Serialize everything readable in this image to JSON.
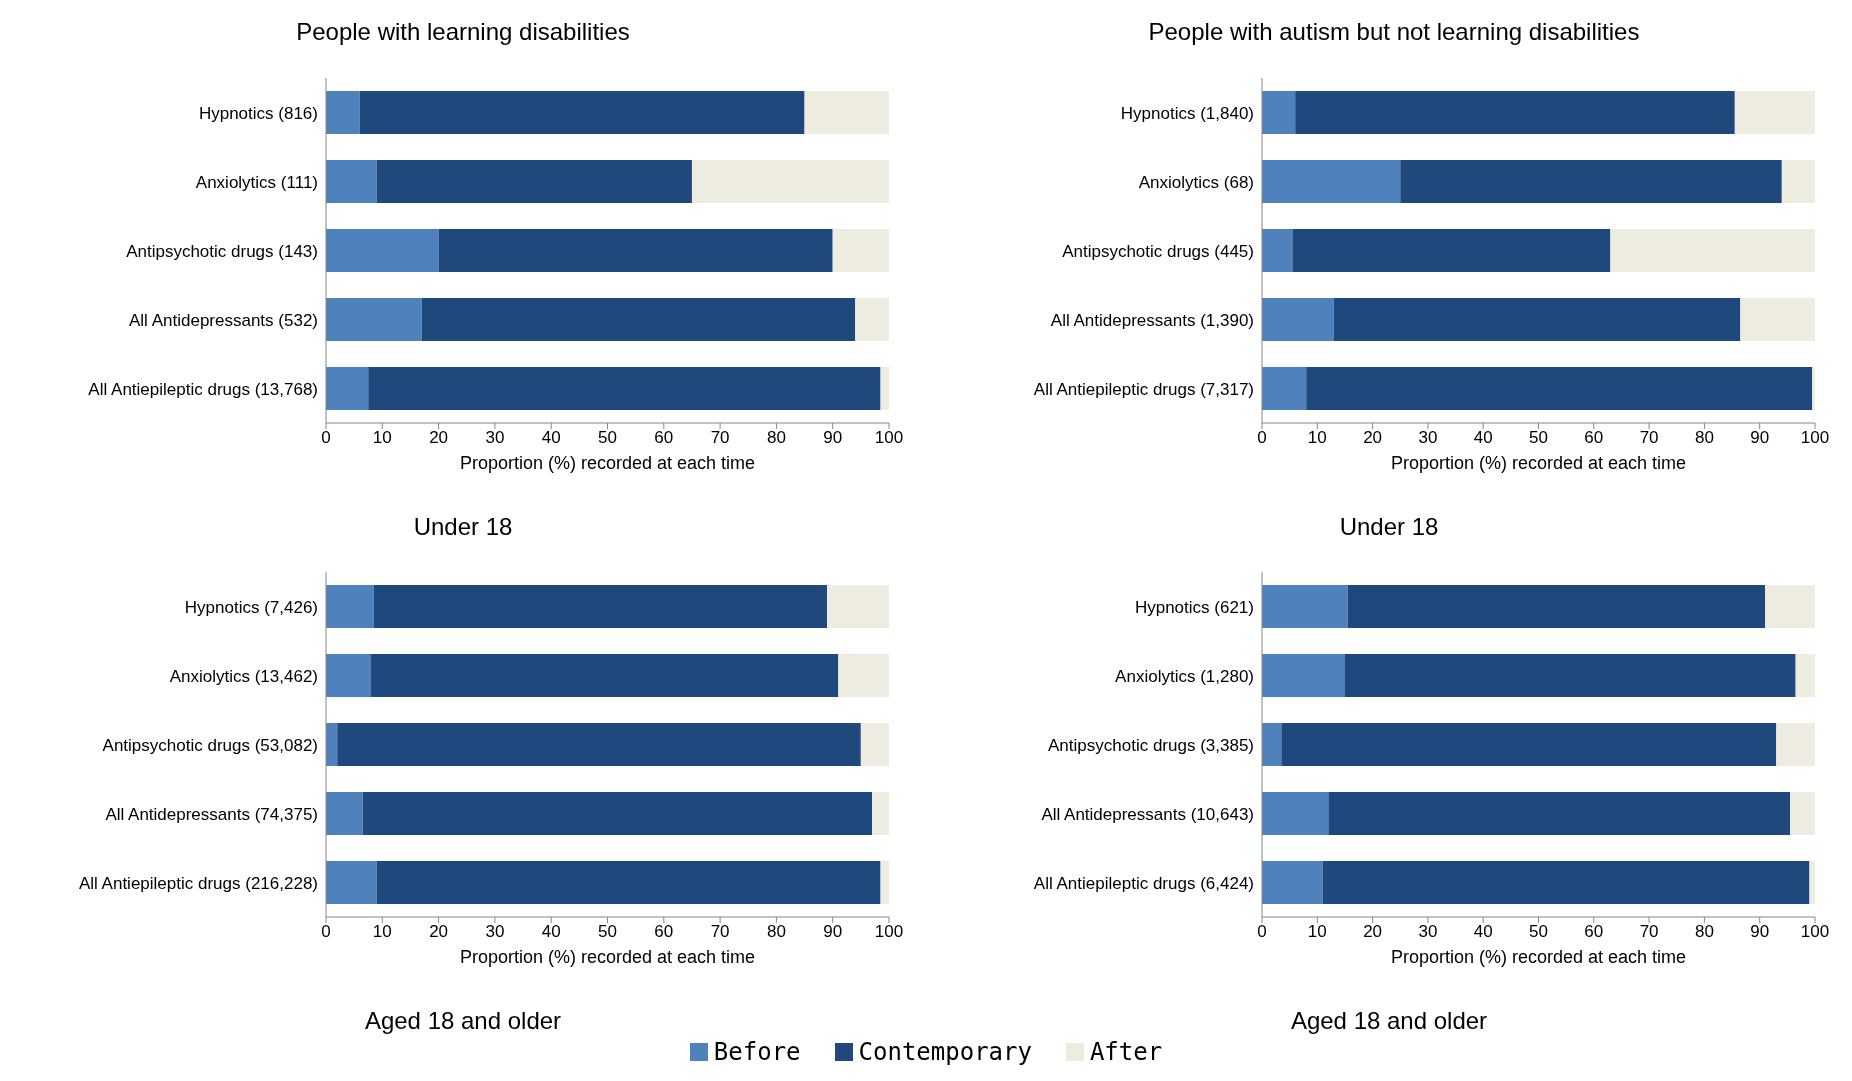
{
  "chart_data": [
    {
      "type": "bar",
      "title": "People with learning disabilities",
      "subtitle": "Under 18",
      "xlabel": "Proportion (%) recorded at each time",
      "orientation": "horizontal",
      "stacked": true,
      "xlim": [
        0,
        100
      ],
      "xticks": [
        0,
        10,
        20,
        30,
        40,
        50,
        60,
        70,
        80,
        90,
        100
      ],
      "categories": [
        "Hypnotics (816)",
        "Anxiolytics (111)",
        "Antipsychotic drugs (143)",
        "All Antidepressants (532)",
        "All Antiepileptic drugs (13,768)"
      ],
      "series": [
        {
          "color": "#4f81bd",
          "values": [
            6,
            9,
            20,
            17,
            7.5
          ]
        },
        {
          "color": "#1f497d",
          "values": [
            79,
            56,
            70,
            77,
            91
          ]
        },
        {
          "color": "#eeece1",
          "values": [
            15,
            35,
            10,
            6,
            1.5
          ]
        }
      ]
    },
    {
      "type": "bar",
      "title": "People with autism but not learning disabilities",
      "subtitle": "Under 18",
      "xlabel": "Proportion (%) recorded at each time",
      "orientation": "horizontal",
      "stacked": true,
      "xlim": [
        0,
        100
      ],
      "xticks": [
        0,
        10,
        20,
        30,
        40,
        50,
        60,
        70,
        80,
        90,
        100
      ],
      "categories": [
        "Hypnotics (1,840)",
        "Anxiolytics (68)",
        "Antipsychotic drugs (445)",
        "All Antidepressants (1,390)",
        "All Antiepileptic drugs (7,317)"
      ],
      "series": [
        {
          "color": "#4f81bd",
          "values": [
            6,
            25,
            5.5,
            13,
            8
          ]
        },
        {
          "color": "#1f497d",
          "values": [
            79.5,
            69,
            57.5,
            73.5,
            91.5
          ]
        },
        {
          "color": "#eeece1",
          "values": [
            14.5,
            6,
            37,
            13.5,
            0.5
          ]
        }
      ]
    },
    {
      "type": "bar",
      "subtitle": "Aged 18 and older",
      "xlabel": "Proportion (%) recorded at each time",
      "orientation": "horizontal",
      "stacked": true,
      "xlim": [
        0,
        100
      ],
      "xticks": [
        0,
        10,
        20,
        30,
        40,
        50,
        60,
        70,
        80,
        90,
        100
      ],
      "categories": [
        "Hypnotics (7,426)",
        "Anxiolytics (13,462)",
        "Antipsychotic drugs (53,082)",
        "All Antidepressants (74,375)",
        "All Antiepileptic drugs (216,228)"
      ],
      "series": [
        {
          "color": "#4f81bd",
          "values": [
            8.5,
            8,
            2,
            6.5,
            9
          ]
        },
        {
          "color": "#1f497d",
          "values": [
            80.5,
            83,
            93,
            90.5,
            89.5
          ]
        },
        {
          "color": "#eeece1",
          "values": [
            11,
            9,
            5,
            3,
            1.5
          ]
        }
      ]
    },
    {
      "type": "bar",
      "subtitle": "Aged 18 and older",
      "xlabel": "Proportion (%) recorded at each time",
      "orientation": "horizontal",
      "stacked": true,
      "xlim": [
        0,
        100
      ],
      "xticks": [
        0,
        10,
        20,
        30,
        40,
        50,
        60,
        70,
        80,
        90,
        100
      ],
      "legend": "bottom",
      "categories": [
        "Hypnotics (621)",
        "Anxiolytics (1,280)",
        "Antipsychotic drugs (3,385)",
        "All Antidepressants (10,643)",
        "All Antiepileptic drugs (6,424)"
      ],
      "series": [
        {
          "name": "Before",
          "color": "#4f81bd",
          "values": [
            15.5,
            15,
            3.5,
            12,
            11
          ]
        },
        {
          "name": "Contemporary",
          "color": "#1f497d",
          "values": [
            75.5,
            81.5,
            89.5,
            83.5,
            88
          ]
        },
        {
          "name": "After",
          "color": "#eeece1",
          "values": [
            9,
            3.5,
            7,
            4.5,
            1
          ]
        }
      ]
    }
  ]
}
